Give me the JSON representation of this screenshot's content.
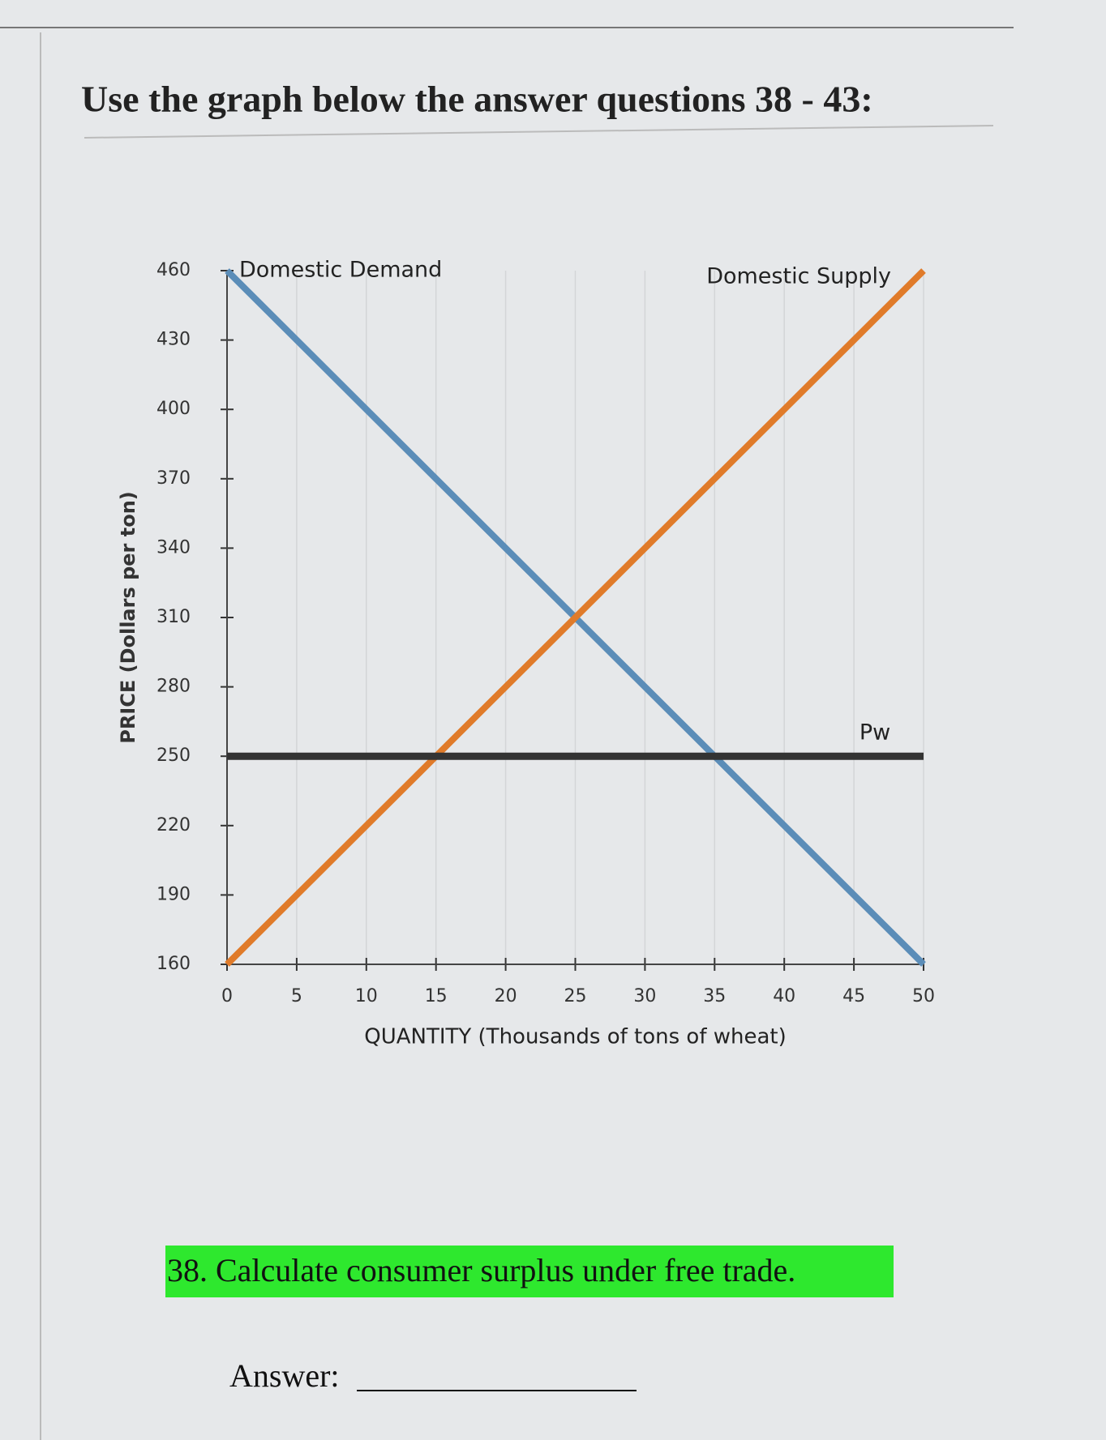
{
  "title": "Use the graph below the answer questions 38 - 43:",
  "chart_data": {
    "type": "line",
    "xlabel": "QUANTITY (Thousands of tons of wheat)",
    "ylabel": "PRICE (Dollars per ton)",
    "xlim": [
      0,
      50
    ],
    "xticks": [
      0,
      5,
      10,
      15,
      20,
      25,
      30,
      35,
      40,
      45,
      50
    ],
    "ylim": [
      160,
      460
    ],
    "yticks": [
      160,
      190,
      220,
      250,
      280,
      310,
      340,
      370,
      400,
      430,
      460
    ],
    "grid": true,
    "series": [
      {
        "name": "Domestic Demand",
        "color": "#5b8db8",
        "x": [
          0,
          50
        ],
        "values": [
          460,
          160
        ]
      },
      {
        "name": "Domestic Supply",
        "color": "#e07b2a",
        "x": [
          0,
          50
        ],
        "values": [
          160,
          460
        ]
      },
      {
        "name": "Pw",
        "color": "#333333",
        "x": [
          0,
          50
        ],
        "values": [
          250,
          250
        ]
      }
    ]
  },
  "question": "38. Calculate consumer surplus under free trade.",
  "answer_label": "Answer:"
}
